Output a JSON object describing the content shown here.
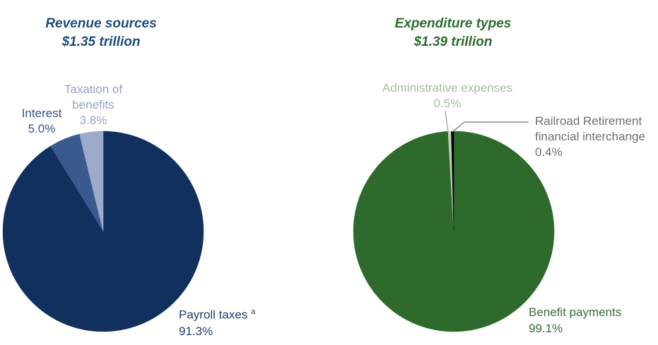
{
  "figure": {
    "background_color": "#ffffff"
  },
  "chart_data": [
    {
      "type": "pie",
      "title": "Revenue sources",
      "subtitle": "$1.35 trillion",
      "title_color": "#1f4e79",
      "start_angle_deg": 0,
      "direction": "clockwise",
      "slices": [
        {
          "label": "Payroll taxes",
          "superscript": "a",
          "value": 91.3,
          "pct_label": "91.3%",
          "color": "#12305e",
          "label_color": "#1f3e6e"
        },
        {
          "label": "Interest",
          "value": 5.0,
          "pct_label": "5.0%",
          "color": "#3a5a8f",
          "label_color": "#33538a"
        },
        {
          "label": "Taxation of benefits",
          "value": 3.8,
          "pct_label": "3.8%",
          "color": "#9babc9",
          "label_color": "#93a3c6"
        }
      ]
    },
    {
      "type": "pie",
      "title": "Expenditure types",
      "subtitle": "$1.39 trillion",
      "title_color": "#2e6c30",
      "start_angle_deg": 0,
      "direction": "clockwise",
      "slices": [
        {
          "label": "Benefit payments",
          "value": 99.1,
          "pct_label": "99.1%",
          "color": "#2d6a2c",
          "label_color": "#366f3a"
        },
        {
          "label": "Administrative expenses",
          "value": 0.5,
          "pct_label": "0.5%",
          "color": "#c4d2bc",
          "label_color": "#a6bd9d"
        },
        {
          "label": "Railroad Retirement financial interchange",
          "value": 0.4,
          "pct_label": "0.4%",
          "color": "#000000",
          "label_color": "#6e6e6e"
        }
      ]
    }
  ],
  "leader_lines": {
    "admin_color": "#a9b6a2",
    "railroad_color": "#8c8c8c"
  }
}
